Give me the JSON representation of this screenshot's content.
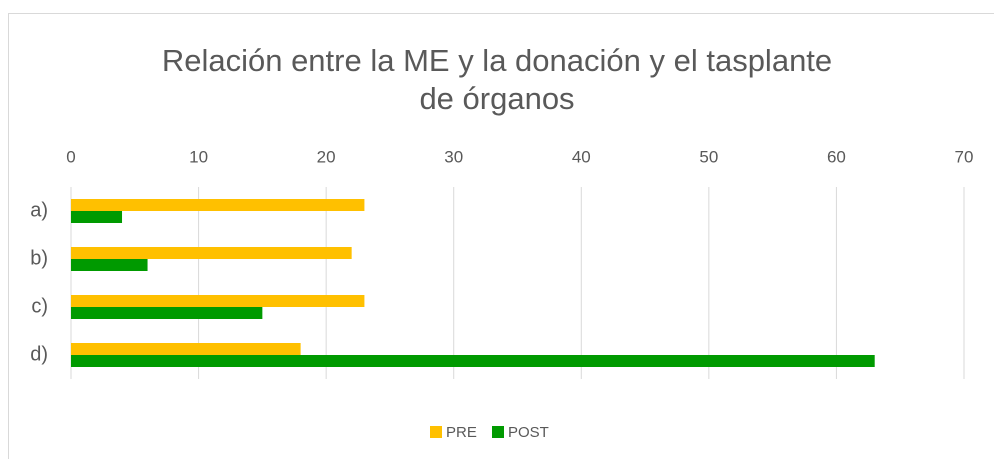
{
  "chart_data": {
    "type": "hbar",
    "title": "Relación entre la ME y la donación y el tasplante de órganos",
    "categories": [
      "a)",
      "b)",
      "c)",
      "d)"
    ],
    "series": [
      {
        "name": "PRE",
        "color": "#ffc000",
        "values": [
          23,
          22,
          23,
          18
        ]
      },
      {
        "name": "POST",
        "color": "#009a00",
        "values": [
          4,
          6,
          15,
          63
        ]
      }
    ],
    "xlim": [
      0,
      70
    ],
    "xticks": [
      0,
      10,
      20,
      30,
      40,
      50,
      60,
      70
    ],
    "grid": true,
    "legend": "bottom"
  }
}
